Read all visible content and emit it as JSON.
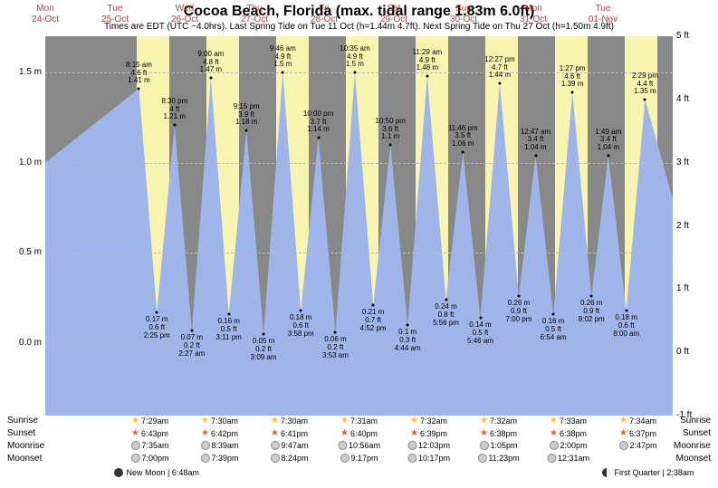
{
  "title": "Cocoa Beach, Florida (max. tidal range 1.83m 6.0ft)",
  "subtitle": "Times are EDT (UTC −4.0hrs). Last Spring Tide on Tue 11 Oct (h=1.44m 4.7ft). Next Spring Tide on Thu 27 Oct (h=1.50m 4.9ft)",
  "chart": {
    "type": "tide-area",
    "background_color": "#888888",
    "daylight_color": "#f8f5b0",
    "tide_fill_color": "#9fb4e8",
    "grid_color": "#bbbbbb",
    "text_color": "#000000",
    "date_label_color": "#b04040",
    "ylim_m": [
      -0.4,
      1.7
    ],
    "yticks_m": [
      0.0,
      0.5,
      1.0,
      1.5
    ],
    "ylim_ft": [
      -1,
      5
    ],
    "yticks_ft": [
      -1,
      0,
      1,
      2,
      3,
      4,
      5
    ],
    "days": [
      {
        "dow": "Mon",
        "date": "24-Oct"
      },
      {
        "dow": "Tue",
        "date": "25-Oct"
      },
      {
        "dow": "Wed",
        "date": "26-Oct"
      },
      {
        "dow": "Thu",
        "date": "27-Oct"
      },
      {
        "dow": "Fri",
        "date": "28-Oct"
      },
      {
        "dow": "Sat",
        "date": "29-Oct"
      },
      {
        "dow": "Sun",
        "date": "30-Oct"
      },
      {
        "dow": "Mon",
        "date": "31-Oct"
      },
      {
        "dow": "Tue",
        "date": "01-Nov"
      }
    ],
    "daylight_spans": [
      {
        "day": 1,
        "rise_hr": 7.48,
        "set_hr": 18.72
      },
      {
        "day": 2,
        "rise_hr": 7.5,
        "set_hr": 18.7
      },
      {
        "day": 3,
        "rise_hr": 7.5,
        "set_hr": 18.68
      },
      {
        "day": 4,
        "rise_hr": 7.52,
        "set_hr": 18.67
      },
      {
        "day": 5,
        "rise_hr": 7.53,
        "set_hr": 18.65
      },
      {
        "day": 6,
        "rise_hr": 7.53,
        "set_hr": 18.63
      },
      {
        "day": 7,
        "rise_hr": 7.55,
        "set_hr": 18.63
      },
      {
        "day": 8,
        "rise_hr": 7.57,
        "set_hr": 18.62
      }
    ],
    "tides": [
      {
        "day": 1,
        "hr": 8.25,
        "m": 1.41,
        "ft": 4.6,
        "time": "8:15 am",
        "type": "high"
      },
      {
        "day": 1,
        "hr": 14.42,
        "m": 0.17,
        "ft": 0.6,
        "time": "2:25 pm",
        "type": "low"
      },
      {
        "day": 1,
        "hr": 20.5,
        "m": 1.21,
        "ft": 4.0,
        "time": "8:30 pm",
        "type": "high"
      },
      {
        "day": 2,
        "hr": 2.45,
        "m": 0.07,
        "ft": 0.2,
        "time": "2:27 am",
        "type": "low"
      },
      {
        "day": 2,
        "hr": 9.0,
        "m": 1.47,
        "ft": 4.8,
        "time": "9:00 am",
        "type": "high"
      },
      {
        "day": 2,
        "hr": 15.18,
        "m": 0.16,
        "ft": 0.5,
        "time": "3:11 pm",
        "type": "low"
      },
      {
        "day": 2,
        "hr": 21.25,
        "m": 1.18,
        "ft": 3.9,
        "time": "9:15 pm",
        "type": "high"
      },
      {
        "day": 3,
        "hr": 3.15,
        "m": 0.05,
        "ft": 0.2,
        "time": "3:09 am",
        "type": "low"
      },
      {
        "day": 3,
        "hr": 9.77,
        "m": 1.5,
        "ft": 4.9,
        "time": "9:46 am",
        "type": "high"
      },
      {
        "day": 3,
        "hr": 15.97,
        "m": 0.18,
        "ft": 0.6,
        "time": "3:58 pm",
        "type": "low"
      },
      {
        "day": 3,
        "hr": 22.0,
        "m": 1.14,
        "ft": 3.7,
        "time": "10:00 pm",
        "type": "high"
      },
      {
        "day": 4,
        "hr": 3.88,
        "m": 0.06,
        "ft": 0.2,
        "time": "3:53 am",
        "type": "low"
      },
      {
        "day": 4,
        "hr": 10.58,
        "m": 1.5,
        "ft": 4.9,
        "time": "10:35 am",
        "type": "high"
      },
      {
        "day": 4,
        "hr": 16.87,
        "m": 0.21,
        "ft": 0.7,
        "time": "4:52 pm",
        "type": "low"
      },
      {
        "day": 4,
        "hr": 22.83,
        "m": 1.1,
        "ft": 3.6,
        "time": "10:50 pm",
        "type": "high"
      },
      {
        "day": 5,
        "hr": 4.73,
        "m": 0.1,
        "ft": 0.3,
        "time": "4:44 am",
        "type": "low"
      },
      {
        "day": 5,
        "hr": 11.48,
        "m": 1.48,
        "ft": 4.9,
        "time": "11:29 am",
        "type": "high"
      },
      {
        "day": 5,
        "hr": 17.93,
        "m": 0.24,
        "ft": 0.8,
        "time": "5:56 pm",
        "type": "low"
      },
      {
        "day": 5,
        "hr": 23.77,
        "m": 1.06,
        "ft": 3.5,
        "time": "11:46 pm",
        "type": "high"
      },
      {
        "day": 6,
        "hr": 5.77,
        "m": 0.14,
        "ft": 0.5,
        "time": "5:46 am",
        "type": "low"
      },
      {
        "day": 6,
        "hr": 12.45,
        "m": 1.44,
        "ft": 4.7,
        "time": "12:27 pm",
        "type": "high"
      },
      {
        "day": 6,
        "hr": 19.0,
        "m": 0.26,
        "ft": 0.9,
        "time": "7:00 pm",
        "type": "low"
      },
      {
        "day": 7,
        "hr": 0.78,
        "m": 1.04,
        "ft": 3.4,
        "time": "12:47 am",
        "type": "high"
      },
      {
        "day": 7,
        "hr": 6.9,
        "m": 0.16,
        "ft": 0.5,
        "time": "6:54 am",
        "type": "low"
      },
      {
        "day": 7,
        "hr": 13.45,
        "m": 1.39,
        "ft": 4.6,
        "time": "1:27 pm",
        "type": "high"
      },
      {
        "day": 7,
        "hr": 20.03,
        "m": 0.26,
        "ft": 0.9,
        "time": "8:02 pm",
        "type": "low"
      },
      {
        "day": 8,
        "hr": 1.82,
        "m": 1.04,
        "ft": 3.4,
        "time": "1:49 am",
        "type": "high"
      },
      {
        "day": 8,
        "hr": 8.0,
        "m": 0.18,
        "ft": 0.6,
        "time": "8:00 am",
        "type": "low"
      },
      {
        "day": 8,
        "hr": 14.48,
        "m": 1.35,
        "ft": 4.4,
        "time": "2:29 pm",
        "type": "high"
      }
    ]
  },
  "footer": {
    "row_labels": [
      "Sunrise",
      "Sunset",
      "Moonrise",
      "Moonset"
    ],
    "sunrise": [
      "7:29am",
      "7:30am",
      "7:30am",
      "7:31am",
      "7:32am",
      "7:32am",
      "7:33am",
      "7:34am"
    ],
    "sunset": [
      "6:43pm",
      "6:42pm",
      "6:41pm",
      "6:40pm",
      "6:39pm",
      "6:38pm",
      "6:38pm",
      "6:37pm"
    ],
    "moonrise": [
      "7:35am",
      "8:39am",
      "9:47am",
      "10:56am",
      "12:03pm",
      "1:05pm",
      "2:00pm",
      "2:47pm"
    ],
    "moonset": [
      "7:00pm",
      "7:39pm",
      "8:24pm",
      "9:17pm",
      "10:17pm",
      "11:23pm",
      "12:31am",
      ""
    ],
    "moon_phases": [
      {
        "label": "New Moon",
        "time": "6:48am",
        "icon": "new",
        "day": 1
      },
      {
        "label": "First Quarter",
        "time": "2:38am",
        "icon": "first-quarter",
        "day": 8
      }
    ]
  }
}
